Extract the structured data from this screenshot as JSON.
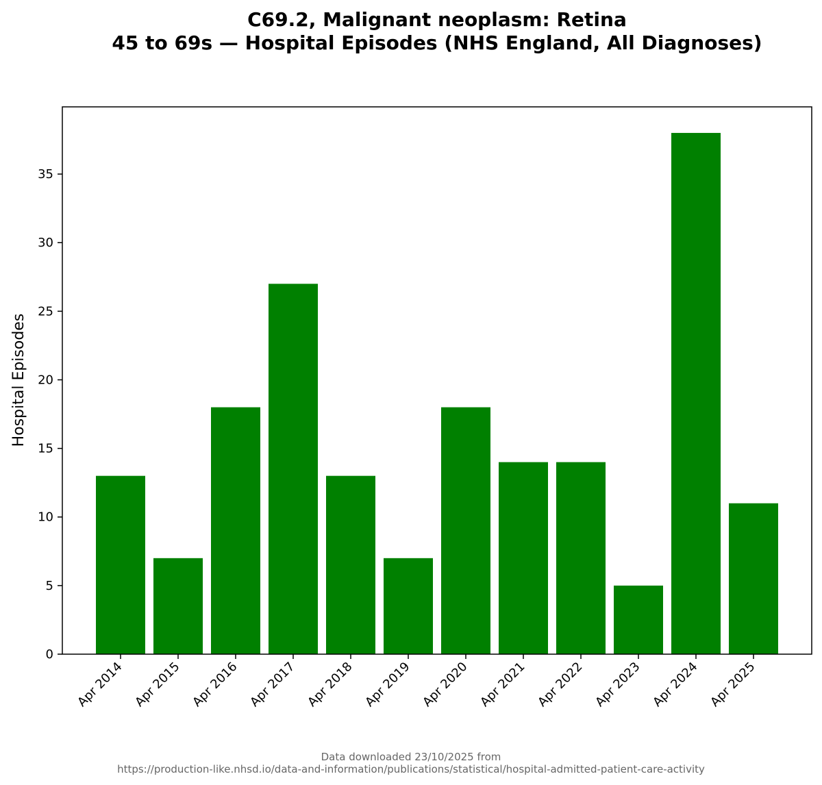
{
  "chart_data": {
    "type": "bar",
    "title_lines": [
      "C69.2, Malignant neoplasm: Retina",
      "45 to 69s — Hospital Episodes (NHS England, All Diagnoses)"
    ],
    "xlabel": "",
    "ylabel": "Hospital Episodes",
    "categories": [
      "Apr 2014",
      "Apr 2015",
      "Apr 2016",
      "Apr 2017",
      "Apr 2018",
      "Apr 2019",
      "Apr 2020",
      "Apr 2021",
      "Apr 2022",
      "Apr 2023",
      "Apr 2024",
      "Apr 2025"
    ],
    "values": [
      13,
      7,
      18,
      27,
      13,
      7,
      18,
      14,
      14,
      5,
      38,
      11
    ],
    "ylim": [
      0,
      39.9
    ],
    "yticks": [
      0,
      5,
      10,
      15,
      20,
      25,
      30,
      35
    ],
    "bar_color": "#008000",
    "grid": false,
    "legend": "none",
    "footer_lines": [
      "Data downloaded 23/10/2025 from",
      "https://production-like.nhsd.io/data-and-information/publications/statistical/hospital-admitted-patient-care-activity"
    ]
  }
}
